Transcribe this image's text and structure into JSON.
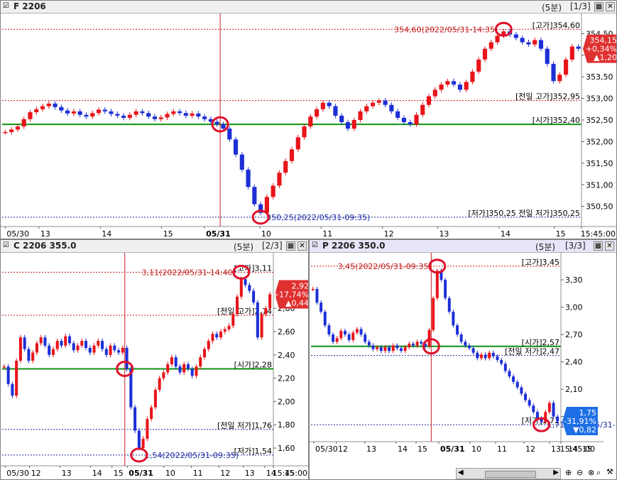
{
  "colors": {
    "up": "#e8141a",
    "down": "#1c2fd6",
    "ref_green": "#109010",
    "high_line": "#c01818",
    "low_line": "#1a2aa0",
    "marker": "#e0102a",
    "neg_box": "#1e6fe6"
  },
  "panels": [
    {
      "id": "f2206",
      "title": "F 2206",
      "period": "(5분)",
      "index": "[1/3]",
      "chart_data": {
        "type": "candlestick",
        "title": "F 2206",
        "ylim": [
          350.1,
          354.9
        ],
        "yticks": [
          "354,50",
          "354,00",
          "353,50",
          "353,00",
          "352,50",
          "352,00",
          "351,50",
          "351,00",
          "350,50"
        ],
        "xticks": [
          "05/30",
          "13",
          "14",
          "15",
          "05/31",
          "10",
          "11",
          "12",
          "13",
          "14",
          "15",
          "15:45:00"
        ],
        "ref_lines": [
          {
            "label": "[고가]354,60",
            "value": 354.6,
            "style": "high"
          },
          {
            "label": "[전일 고가]352,95",
            "value": 352.95,
            "style": "high"
          },
          {
            "label": "[시가]352,40",
            "value": 352.4,
            "style": "open"
          },
          {
            "label": "[저가]350,25",
            "value": 350.25,
            "style": "low"
          }
        ],
        "overlap_label": "[저가]350,25 전일 저가]350,25",
        "annotations": [
          {
            "text": "354,60(2022/05/31-14:35)",
            "value": 354.6
          },
          {
            "text": "350,25(2022/05/31-09:35)",
            "value": 350.25
          }
        ],
        "current": {
          "price": "354,15",
          "change_pct": "+0,34%",
          "change": "▲1,20"
        },
        "series": [
          {
            "name": "",
            "values": [
              352.22,
              352.28,
              352.35,
              352.52,
              352.68,
              352.75,
              352.82,
              352.88,
              352.8,
              352.72,
              352.65,
              352.7,
              352.62,
              352.58,
              352.66,
              352.74,
              352.7,
              352.64,
              352.6,
              352.55,
              352.62,
              352.7,
              352.66,
              352.58,
              352.52,
              352.56,
              352.64,
              352.7,
              352.66,
              352.6,
              352.65,
              352.58,
              352.52,
              352.46,
              352.4,
              352.3,
              352.05,
              351.7,
              351.35,
              350.95,
              350.55,
              350.35,
              350.72,
              350.98,
              351.28,
              351.55,
              351.82,
              352.1,
              352.35,
              352.58,
              352.75,
              352.9,
              352.82,
              352.6,
              352.45,
              352.3,
              352.5,
              352.7,
              352.82,
              352.9,
              352.95,
              352.85,
              352.7,
              352.55,
              352.45,
              352.4,
              352.62,
              352.85,
              353.05,
              353.2,
              353.32,
              353.4,
              353.32,
              353.2,
              353.38,
              353.62,
              353.9,
              354.15,
              354.3,
              354.45,
              354.55,
              354.48,
              354.4,
              354.3,
              354.25,
              354.35,
              354.15,
              353.8,
              353.4,
              353.55,
              353.9,
              354.2,
              354.15
            ]
          }
        ],
        "ohlc_style": "up=red, down=blue"
      }
    },
    {
      "id": "c2206",
      "title": "C 2206 355.0",
      "period": "(5분)",
      "index": "[2/3]",
      "chart_data": {
        "type": "candlestick",
        "title": "C 2206 355.0",
        "ylim": [
          1.46,
          3.24
        ],
        "yticks": [
          "2,80",
          "2,60",
          "2,40",
          "2,20",
          "2,00",
          "1,80",
          "1,60"
        ],
        "xticks": [
          "05/30",
          "12",
          "13",
          "14",
          "15",
          "05/31",
          "10",
          "11",
          "12",
          "13",
          "14",
          "15",
          "15:45:00"
        ],
        "ref_lines": [
          {
            "label": "[고가]3,11",
            "value": 3.11,
            "style": "high"
          },
          {
            "label": "[전일 고가]2,74",
            "value": 2.74,
            "style": "high"
          },
          {
            "label": "[시가]2,28",
            "value": 2.28,
            "style": "open"
          },
          {
            "label": "[전일 저가]1,76",
            "value": 1.76,
            "style": "low"
          },
          {
            "label": "[저가]1,54",
            "value": 1.54,
            "style": "low"
          }
        ],
        "annotations": [
          {
            "text": "3,11(2022/05/31-14:40)",
            "value": 3.11
          },
          {
            "text": "1,54(2022/05/31-09:35)",
            "value": 1.54
          }
        ],
        "current": {
          "price": "2,92",
          "change_pct": "+17,74%",
          "change": "▲0,44"
        },
        "series": [
          {
            "name": "",
            "values": [
              2.3,
              2.15,
              2.05,
              2.35,
              2.55,
              2.45,
              2.35,
              2.42,
              2.5,
              2.55,
              2.48,
              2.4,
              2.45,
              2.52,
              2.48,
              2.56,
              2.5,
              2.44,
              2.48,
              2.52,
              2.46,
              2.42,
              2.48,
              2.52,
              2.45,
              2.4,
              2.48,
              2.44,
              2.42,
              2.46,
              2.28,
              1.95,
              1.75,
              1.6,
              1.68,
              1.85,
              1.95,
              2.1,
              2.2,
              2.25,
              2.32,
              2.38,
              2.3,
              2.25,
              2.32,
              2.28,
              2.22,
              2.3,
              2.38,
              2.45,
              2.52,
              2.58,
              2.55,
              2.6,
              2.62,
              2.65,
              2.75,
              2.9,
              3.05,
              3.0,
              2.95,
              2.85,
              2.55,
              2.75,
              2.8,
              2.92
            ]
          }
        ],
        "ohlc_style": "up=red, down=blue"
      }
    },
    {
      "id": "p2206",
      "title": "P 2206 350.0",
      "period": "(5분)",
      "index": "[3/3]",
      "chart_data": {
        "type": "candlestick",
        "title": "P 2206 350.0",
        "ylim": [
          1.54,
          3.55
        ],
        "yticks": [
          "3,30",
          "3,00",
          "2,70",
          "2,40",
          "2,10",
          "1,80"
        ],
        "xticks": [
          "05/30",
          "12",
          "13",
          "14",
          "15",
          "05/31",
          "10",
          "11",
          "12",
          "13",
          "14",
          "15",
          "15:45:00"
        ],
        "ref_lines": [
          {
            "label": "[고가]3,45",
            "value": 3.45,
            "style": "high"
          },
          {
            "label": "[시가]2,57",
            "value": 2.57,
            "style": "open"
          },
          {
            "label": "[전일 저가]2,47",
            "value": 2.47,
            "style": "low"
          },
          {
            "label": "[저가]1,71",
            "value": 1.71,
            "style": "low"
          }
        ],
        "annotations": [
          {
            "text": "3,45(2022/05/31-09:35)",
            "value": 3.45
          },
          {
            "text": "1,71(2022/05/31-14:40)",
            "value": 1.71
          }
        ],
        "current": {
          "price": "1,75",
          "change_pct": "-31,91%",
          "change": "▼0,82"
        },
        "series": [
          {
            "name": "",
            "values": [
              3.2,
              3.05,
              2.95,
              2.8,
              2.7,
              2.62,
              2.66,
              2.74,
              2.7,
              2.64,
              2.72,
              2.76,
              2.7,
              2.62,
              2.58,
              2.54,
              2.56,
              2.52,
              2.56,
              2.52,
              2.58,
              2.55,
              2.52,
              2.56,
              2.6,
              2.58,
              2.62,
              2.6,
              2.57,
              2.75,
              3.1,
              3.4,
              3.3,
              3.1,
              2.95,
              2.8,
              2.7,
              2.62,
              2.58,
              2.55,
              2.5,
              2.44,
              2.48,
              2.44,
              2.5,
              2.46,
              2.42,
              2.38,
              2.3,
              2.24,
              2.18,
              2.12,
              2.05,
              1.98,
              1.92,
              1.85,
              1.78,
              1.74,
              1.85,
              1.95,
              1.8,
              1.75
            ]
          }
        ],
        "ohlc_style": "up=red, down=blue"
      }
    }
  ]
}
